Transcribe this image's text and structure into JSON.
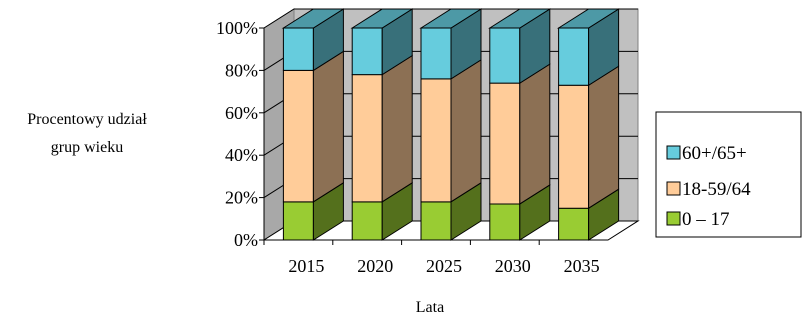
{
  "chart_data": {
    "type": "bar",
    "stacked": true,
    "percent": true,
    "three_d": true,
    "categories": [
      "2015",
      "2020",
      "2025",
      "2030",
      "2035"
    ],
    "series": [
      {
        "name": "0 – 17",
        "values": [
          18,
          18,
          18,
          17,
          15
        ],
        "color": "#99cc33"
      },
      {
        "name": "18-59/64",
        "values": [
          62,
          60,
          58,
          57,
          58
        ],
        "color": "#ffcc99"
      },
      {
        "name": "60+/65+",
        "values": [
          20,
          22,
          24,
          26,
          27
        ],
        "color": "#66ccdd"
      }
    ],
    "y_ticks": [
      "0%",
      "20%",
      "40%",
      "60%",
      "80%",
      "100%"
    ],
    "ylim": [
      0,
      100
    ],
    "ylabel": "Procentowy udział grup wieku",
    "ylabel_lines": [
      "Procentowy udział",
      "grup wieku"
    ],
    "xlabel": "Lata",
    "grid": true,
    "legend_position": "right",
    "legend_order": [
      "60+/65+",
      "18-59/64",
      "0 – 17"
    ],
    "colors": {
      "wall": "#c0c0c0",
      "floor": "#ffffff",
      "grid": "#000000"
    }
  }
}
